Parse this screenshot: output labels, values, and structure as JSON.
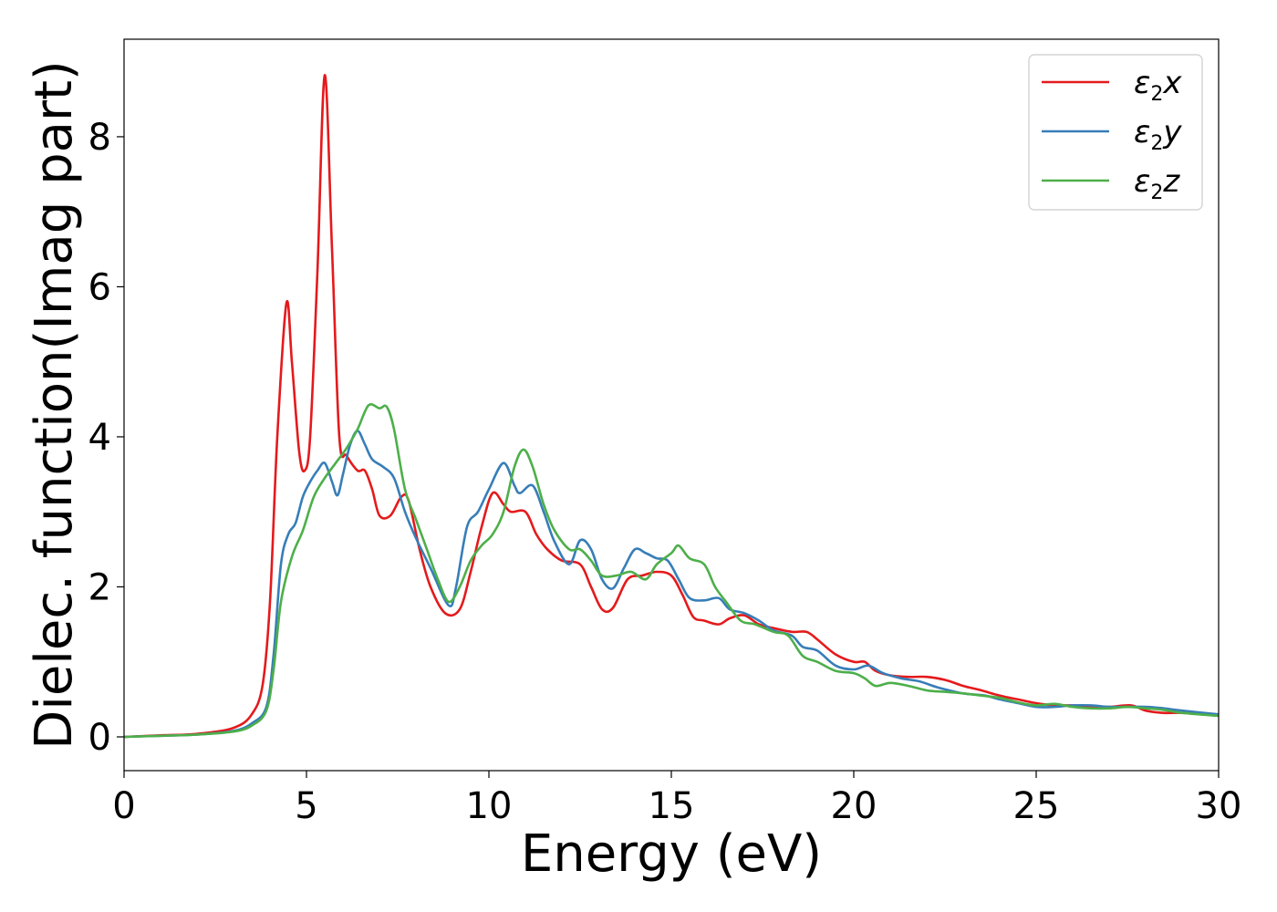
{
  "chart_data": {
    "type": "line",
    "xlabel": "Energy (eV)",
    "ylabel": "Dielec. function(Imag part)",
    "xlim": [
      0,
      30
    ],
    "ylim": [
      -0.45,
      9.3
    ],
    "xticks": [
      0,
      5,
      10,
      15,
      20,
      25,
      30
    ],
    "yticks": [
      0,
      2,
      4,
      6,
      8
    ],
    "grid": false,
    "legend_position": "top-right",
    "series": [
      {
        "name": "ε2x",
        "legend_main": "ε",
        "legend_sub": "2",
        "legend_tail": "x",
        "color": "#e41a1c",
        "points": [
          [
            0,
            0
          ],
          [
            1,
            0.02
          ],
          [
            2,
            0.04
          ],
          [
            3,
            0.12
          ],
          [
            3.5,
            0.3
          ],
          [
            3.8,
            0.7
          ],
          [
            4.0,
            1.8
          ],
          [
            4.2,
            4.0
          ],
          [
            4.45,
            5.78
          ],
          [
            4.6,
            5.0
          ],
          [
            4.8,
            3.8
          ],
          [
            4.95,
            3.55
          ],
          [
            5.1,
            4.0
          ],
          [
            5.3,
            6.2
          ],
          [
            5.5,
            8.82
          ],
          [
            5.7,
            6.5
          ],
          [
            5.9,
            4.0
          ],
          [
            6.1,
            3.75
          ],
          [
            6.4,
            3.55
          ],
          [
            6.6,
            3.55
          ],
          [
            6.8,
            3.3
          ],
          [
            7.0,
            2.95
          ],
          [
            7.3,
            2.95
          ],
          [
            7.6,
            3.2
          ],
          [
            7.8,
            3.15
          ],
          [
            8.1,
            2.5
          ],
          [
            8.4,
            2.0
          ],
          [
            8.8,
            1.65
          ],
          [
            9.2,
            1.7
          ],
          [
            9.5,
            2.2
          ],
          [
            9.8,
            2.8
          ],
          [
            10.1,
            3.25
          ],
          [
            10.4,
            3.1
          ],
          [
            10.6,
            3.0
          ],
          [
            11.0,
            3.0
          ],
          [
            11.3,
            2.7
          ],
          [
            11.6,
            2.5
          ],
          [
            12.0,
            2.35
          ],
          [
            12.5,
            2.3
          ],
          [
            12.8,
            2.0
          ],
          [
            13.1,
            1.7
          ],
          [
            13.4,
            1.72
          ],
          [
            13.8,
            2.1
          ],
          [
            14.2,
            2.15
          ],
          [
            14.6,
            2.2
          ],
          [
            15.0,
            2.15
          ],
          [
            15.3,
            1.9
          ],
          [
            15.6,
            1.6
          ],
          [
            15.9,
            1.55
          ],
          [
            16.3,
            1.5
          ],
          [
            16.6,
            1.58
          ],
          [
            17.0,
            1.62
          ],
          [
            17.4,
            1.5
          ],
          [
            17.8,
            1.45
          ],
          [
            18.3,
            1.4
          ],
          [
            18.7,
            1.4
          ],
          [
            19.0,
            1.3
          ],
          [
            19.5,
            1.1
          ],
          [
            20.0,
            1.0
          ],
          [
            20.3,
            1.0
          ],
          [
            20.6,
            0.88
          ],
          [
            21.0,
            0.82
          ],
          [
            21.5,
            0.8
          ],
          [
            22.0,
            0.8
          ],
          [
            22.5,
            0.76
          ],
          [
            23.0,
            0.68
          ],
          [
            23.5,
            0.62
          ],
          [
            24.0,
            0.55
          ],
          [
            24.5,
            0.5
          ],
          [
            25.0,
            0.45
          ],
          [
            25.5,
            0.42
          ],
          [
            26.0,
            0.42
          ],
          [
            26.5,
            0.4
          ],
          [
            27.0,
            0.4
          ],
          [
            27.6,
            0.42
          ],
          [
            28.0,
            0.35
          ],
          [
            28.5,
            0.32
          ],
          [
            29.0,
            0.32
          ],
          [
            30.0,
            0.3
          ]
        ]
      },
      {
        "name": "ε2y",
        "legend_main": "ε",
        "legend_sub": "2",
        "legend_tail": "y",
        "color": "#377eb8",
        "points": [
          [
            0,
            0
          ],
          [
            1,
            0.015
          ],
          [
            2,
            0.03
          ],
          [
            3,
            0.08
          ],
          [
            3.5,
            0.18
          ],
          [
            3.9,
            0.4
          ],
          [
            4.1,
            1.1
          ],
          [
            4.3,
            2.3
          ],
          [
            4.5,
            2.7
          ],
          [
            4.7,
            2.85
          ],
          [
            4.9,
            3.2
          ],
          [
            5.1,
            3.4
          ],
          [
            5.3,
            3.55
          ],
          [
            5.5,
            3.65
          ],
          [
            5.7,
            3.4
          ],
          [
            5.85,
            3.22
          ],
          [
            6.0,
            3.5
          ],
          [
            6.2,
            3.9
          ],
          [
            6.4,
            4.08
          ],
          [
            6.6,
            3.9
          ],
          [
            6.8,
            3.7
          ],
          [
            7.1,
            3.6
          ],
          [
            7.4,
            3.45
          ],
          [
            7.7,
            3.0
          ],
          [
            8.0,
            2.65
          ],
          [
            8.4,
            2.25
          ],
          [
            8.9,
            1.75
          ],
          [
            9.1,
            2.0
          ],
          [
            9.4,
            2.8
          ],
          [
            9.7,
            3.0
          ],
          [
            10.0,
            3.3
          ],
          [
            10.4,
            3.65
          ],
          [
            10.7,
            3.35
          ],
          [
            10.85,
            3.25
          ],
          [
            11.2,
            3.35
          ],
          [
            11.5,
            3.0
          ],
          [
            11.8,
            2.6
          ],
          [
            12.2,
            2.3
          ],
          [
            12.5,
            2.62
          ],
          [
            12.8,
            2.5
          ],
          [
            13.1,
            2.1
          ],
          [
            13.4,
            1.98
          ],
          [
            13.7,
            2.25
          ],
          [
            14.0,
            2.5
          ],
          [
            14.3,
            2.45
          ],
          [
            14.6,
            2.38
          ],
          [
            14.9,
            2.35
          ],
          [
            15.2,
            2.1
          ],
          [
            15.5,
            1.85
          ],
          [
            15.9,
            1.82
          ],
          [
            16.3,
            1.85
          ],
          [
            16.6,
            1.7
          ],
          [
            17.0,
            1.65
          ],
          [
            17.4,
            1.55
          ],
          [
            17.8,
            1.42
          ],
          [
            18.3,
            1.35
          ],
          [
            18.6,
            1.2
          ],
          [
            19.0,
            1.15
          ],
          [
            19.5,
            0.95
          ],
          [
            20.0,
            0.9
          ],
          [
            20.4,
            0.95
          ],
          [
            20.8,
            0.85
          ],
          [
            21.3,
            0.78
          ],
          [
            21.8,
            0.74
          ],
          [
            22.3,
            0.66
          ],
          [
            23.0,
            0.58
          ],
          [
            23.6,
            0.55
          ],
          [
            24.0,
            0.5
          ],
          [
            24.5,
            0.45
          ],
          [
            25.0,
            0.4
          ],
          [
            25.5,
            0.4
          ],
          [
            26.0,
            0.42
          ],
          [
            26.5,
            0.42
          ],
          [
            27.0,
            0.4
          ],
          [
            27.5,
            0.4
          ],
          [
            28.0,
            0.4
          ],
          [
            28.5,
            0.38
          ],
          [
            29.0,
            0.35
          ],
          [
            30.0,
            0.3
          ]
        ]
      },
      {
        "name": "ε2z",
        "legend_main": "ε",
        "legend_sub": "2",
        "legend_tail": "z",
        "color": "#4daf4a",
        "points": [
          [
            0,
            0
          ],
          [
            1,
            0.015
          ],
          [
            2,
            0.03
          ],
          [
            3,
            0.07
          ],
          [
            3.5,
            0.15
          ],
          [
            3.9,
            0.35
          ],
          [
            4.1,
            0.9
          ],
          [
            4.3,
            1.8
          ],
          [
            4.6,
            2.4
          ],
          [
            4.9,
            2.75
          ],
          [
            5.2,
            3.2
          ],
          [
            5.5,
            3.45
          ],
          [
            5.8,
            3.65
          ],
          [
            6.1,
            3.85
          ],
          [
            6.4,
            4.1
          ],
          [
            6.7,
            4.42
          ],
          [
            7.0,
            4.38
          ],
          [
            7.2,
            4.4
          ],
          [
            7.4,
            4.1
          ],
          [
            7.7,
            3.3
          ],
          [
            8.0,
            2.9
          ],
          [
            8.3,
            2.5
          ],
          [
            8.6,
            2.1
          ],
          [
            8.9,
            1.8
          ],
          [
            9.2,
            2.0
          ],
          [
            9.5,
            2.35
          ],
          [
            9.8,
            2.55
          ],
          [
            10.1,
            2.7
          ],
          [
            10.4,
            3.0
          ],
          [
            10.7,
            3.6
          ],
          [
            10.95,
            3.83
          ],
          [
            11.2,
            3.6
          ],
          [
            11.5,
            3.1
          ],
          [
            11.8,
            2.75
          ],
          [
            12.2,
            2.5
          ],
          [
            12.5,
            2.5
          ],
          [
            12.8,
            2.35
          ],
          [
            13.1,
            2.15
          ],
          [
            13.5,
            2.15
          ],
          [
            13.9,
            2.2
          ],
          [
            14.3,
            2.1
          ],
          [
            14.6,
            2.3
          ],
          [
            15.0,
            2.45
          ],
          [
            15.2,
            2.55
          ],
          [
            15.5,
            2.38
          ],
          [
            15.9,
            2.3
          ],
          [
            16.2,
            2.0
          ],
          [
            16.5,
            1.8
          ],
          [
            16.9,
            1.55
          ],
          [
            17.3,
            1.5
          ],
          [
            17.8,
            1.4
          ],
          [
            18.2,
            1.35
          ],
          [
            18.6,
            1.08
          ],
          [
            19.0,
            1.0
          ],
          [
            19.5,
            0.88
          ],
          [
            20.0,
            0.85
          ],
          [
            20.3,
            0.78
          ],
          [
            20.6,
            0.68
          ],
          [
            21.0,
            0.72
          ],
          [
            21.5,
            0.68
          ],
          [
            22.0,
            0.62
          ],
          [
            22.5,
            0.6
          ],
          [
            23.0,
            0.58
          ],
          [
            23.5,
            0.55
          ],
          [
            24.0,
            0.52
          ],
          [
            24.5,
            0.46
          ],
          [
            25.0,
            0.42
          ],
          [
            25.5,
            0.44
          ],
          [
            26.0,
            0.4
          ],
          [
            26.5,
            0.38
          ],
          [
            27.0,
            0.38
          ],
          [
            27.5,
            0.4
          ],
          [
            28.0,
            0.38
          ],
          [
            28.5,
            0.36
          ],
          [
            29.0,
            0.32
          ],
          [
            30.0,
            0.28
          ]
        ]
      }
    ]
  }
}
